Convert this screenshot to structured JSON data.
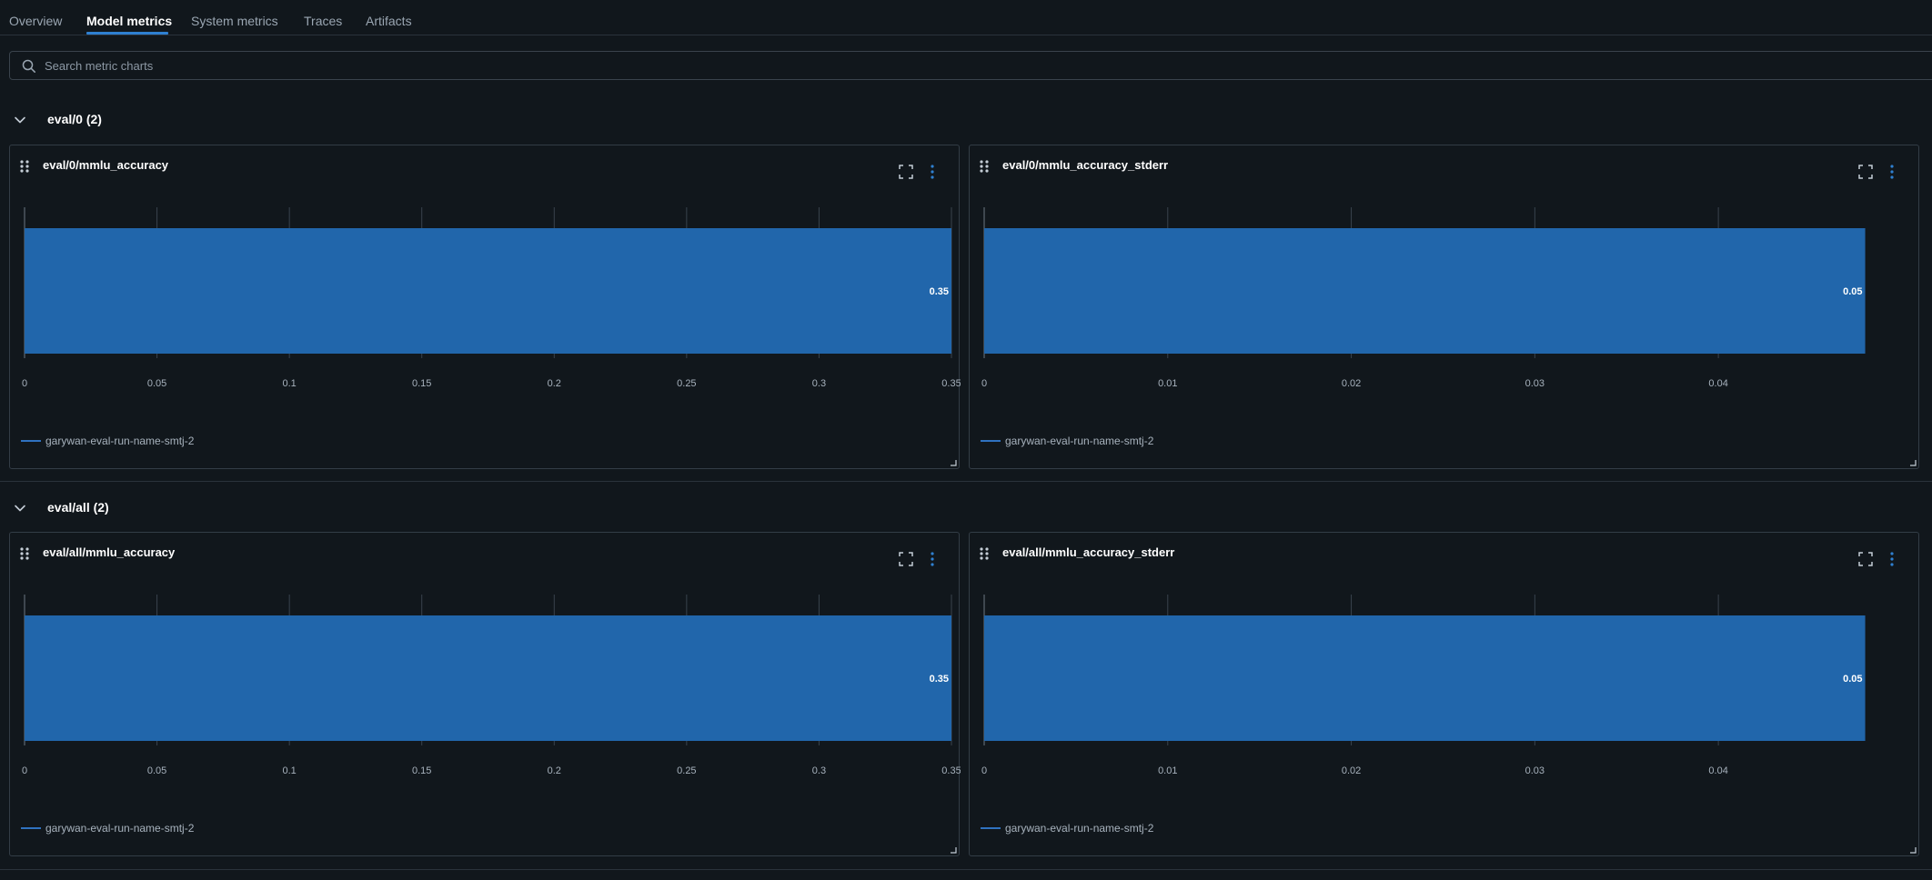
{
  "tabs": [
    {
      "label": "Overview",
      "active": false
    },
    {
      "label": "Model metrics",
      "active": true
    },
    {
      "label": "System metrics",
      "active": false
    },
    {
      "label": "Traces",
      "active": false
    },
    {
      "label": "Artifacts",
      "active": false
    }
  ],
  "search": {
    "placeholder": "Search metric charts",
    "value": ""
  },
  "sections": [
    {
      "title": "eval/0 (2)",
      "expanded": true
    },
    {
      "title": "eval/all (2)",
      "expanded": true
    }
  ],
  "colors": {
    "bar": "#2166ab",
    "accent": "#2f80d1",
    "background": "#11171c"
  },
  "charts": [
    {
      "title": "eval/0/mmlu_accuracy",
      "legend": "garywan-eval-run-name-smtj-2"
    },
    {
      "title": "eval/0/mmlu_accuracy_stderr",
      "legend": "garywan-eval-run-name-smtj-2"
    },
    {
      "title": "eval/all/mmlu_accuracy",
      "legend": "garywan-eval-run-name-smtj-2"
    },
    {
      "title": "eval/all/mmlu_accuracy_stderr",
      "legend": "garywan-eval-run-name-smtj-2"
    }
  ],
  "chart_data": [
    {
      "type": "bar",
      "orientation": "horizontal",
      "title": "eval/0/mmlu_accuracy",
      "series": [
        {
          "name": "garywan-eval-run-name-smtj-2",
          "values": [
            0.35
          ]
        }
      ],
      "value_labels": [
        "0.35"
      ],
      "xticks": [
        "0",
        "0.05",
        "0.1",
        "0.15",
        "0.2",
        "0.25",
        "0.3",
        "0.35"
      ],
      "xlim": [
        0,
        0.35
      ],
      "grid": true,
      "legend": "bottom-left"
    },
    {
      "type": "bar",
      "orientation": "horizontal",
      "title": "eval/0/mmlu_accuracy_stderr",
      "series": [
        {
          "name": "garywan-eval-run-name-smtj-2",
          "values": [
            0.048
          ]
        }
      ],
      "value_labels": [
        "0.05"
      ],
      "xticks": [
        "0",
        "0.01",
        "0.02",
        "0.03",
        "0.04"
      ],
      "xlim": [
        0,
        0.0505
      ],
      "grid": true,
      "legend": "bottom-left"
    },
    {
      "type": "bar",
      "orientation": "horizontal",
      "title": "eval/all/mmlu_accuracy",
      "series": [
        {
          "name": "garywan-eval-run-name-smtj-2",
          "values": [
            0.35
          ]
        }
      ],
      "value_labels": [
        "0.35"
      ],
      "xticks": [
        "0",
        "0.05",
        "0.1",
        "0.15",
        "0.2",
        "0.25",
        "0.3",
        "0.35"
      ],
      "xlim": [
        0,
        0.35
      ],
      "grid": true,
      "legend": "bottom-left"
    },
    {
      "type": "bar",
      "orientation": "horizontal",
      "title": "eval/all/mmlu_accuracy_stderr",
      "series": [
        {
          "name": "garywan-eval-run-name-smtj-2",
          "values": [
            0.048
          ]
        }
      ],
      "value_labels": [
        "0.05"
      ],
      "xticks": [
        "0",
        "0.01",
        "0.02",
        "0.03",
        "0.04"
      ],
      "xlim": [
        0,
        0.0505
      ],
      "grid": true,
      "legend": "bottom-left"
    }
  ]
}
